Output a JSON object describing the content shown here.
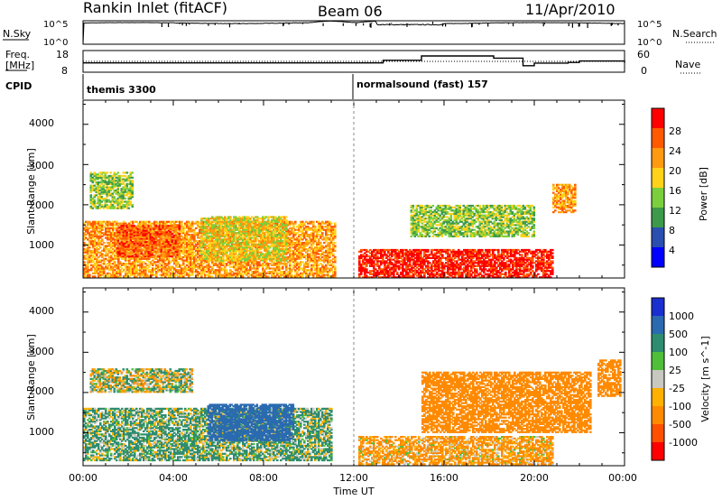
{
  "header": {
    "title": "Rankin Inlet (fitACF)",
    "beam": "Beam 06",
    "date": "11/Apr/2010"
  },
  "top_panels": {
    "nsky_label": "N.Sky",
    "nsky_ticks": [
      "10^5",
      "10^0"
    ],
    "nsearch_label": "N.Search",
    "freq_label": "Freq.",
    "freq_unit": "[MHz]",
    "freq_ticks": [
      "18",
      "8"
    ],
    "nave_label": "Nave",
    "nave_ticks": [
      "60",
      "0"
    ],
    "cpid_label": "CPID",
    "cpid_segments": [
      {
        "name": "themis 3300",
        "start": 0
      },
      {
        "name": "normalsound (fast) 157",
        "start": 12
      }
    ]
  },
  "x_axis": {
    "label": "Time UT",
    "ticks": [
      "00:00",
      "04:00",
      "08:00",
      "12:00",
      "16:00",
      "20:00",
      "00:00"
    ]
  },
  "power_panel": {
    "ylabel": "Slant Range [km]",
    "yticks": [
      "1000",
      "2000",
      "3000",
      "4000"
    ],
    "colorbar_label": "Power [dB]",
    "colorbar_ticks": [
      "28",
      "24",
      "20",
      "16",
      "12",
      "8",
      "4"
    ],
    "colors": [
      "#0000ff",
      "#2a4fb0",
      "#3c9a4a",
      "#7ccf3c",
      "#ffd21a",
      "#ff9a10",
      "#ff5a00",
      "#ff0000"
    ]
  },
  "velocity_panel": {
    "ylabel": "Slant Range [km]",
    "yticks": [
      "1000",
      "2000",
      "3000",
      "4000"
    ],
    "colorbar_label": "Velocity [m s^-1]",
    "colorbar_ticks": [
      "1000",
      "500",
      "100",
      "25",
      "-25",
      "-100",
      "-500",
      "-1000"
    ],
    "colors": [
      "#1a2fd0",
      "#2a6ab0",
      "#2e8c70",
      "#4fbf3a",
      "#c8c8c0",
      "#ffb000",
      "#ff8a00",
      "#ff5000",
      "#ff0000"
    ]
  },
  "chart_data": [
    {
      "type": "line",
      "name_text": "N.Sky / N.Search",
      "x_range_hours": [
        0,
        24
      ],
      "y_scale": "log",
      "ylim": [
        "10^0",
        "10^5"
      ]
    },
    {
      "type": "line",
      "x_range_hours": [
        0,
        24
      ],
      "series": [
        {
          "name": "Freq.",
          "x": [
            0,
            12,
            13.3,
            15,
            18.2,
            19.5,
            20,
            21.5,
            22,
            24
          ],
          "values": [
            12.3,
            12.3,
            13.5,
            15.5,
            14.5,
            11.0,
            12.2,
            12.5,
            13.2,
            12.3
          ]
        },
        {
          "name": "Nave",
          "x": [
            0,
            12,
            24
          ],
          "values": [
            28,
            28,
            28
          ]
        }
      ],
      "ylim": [
        8,
        18
      ]
    },
    {
      "type": "heatmap",
      "quantity": "Power [dB]",
      "x_range_hours": [
        0,
        24
      ],
      "ylim_km": [
        180,
        4600
      ],
      "clim": [
        0,
        32
      ],
      "regions": [
        {
          "t0": 0.0,
          "t1": 11.2,
          "r0": 200,
          "r1": 1600,
          "level": 5
        },
        {
          "t0": 0.3,
          "t1": 2.2,
          "r0": 1900,
          "r1": 2800,
          "level": 3
        },
        {
          "t0": 1.5,
          "t1": 4.3,
          "r0": 700,
          "r1": 1500,
          "level": 6
        },
        {
          "t0": 5.2,
          "t1": 9.0,
          "r0": 600,
          "r1": 1700,
          "level": 4
        },
        {
          "t0": 12.2,
          "t1": 20.8,
          "r0": 180,
          "r1": 900,
          "level": 7
        },
        {
          "t0": 14.5,
          "t1": 20.0,
          "r0": 1200,
          "r1": 2000,
          "level": 3
        },
        {
          "t0": 20.8,
          "t1": 21.8,
          "r0": 1800,
          "r1": 2500,
          "level": 5
        }
      ]
    },
    {
      "type": "heatmap",
      "quantity": "Velocity [m s^-1]",
      "x_range_hours": [
        0,
        24
      ],
      "ylim_km": [
        180,
        4600
      ],
      "clim": [
        -1000,
        1000
      ],
      "regions": [
        {
          "t0": 0.0,
          "t1": 11.0,
          "r0": 300,
          "r1": 1600,
          "value": 100
        },
        {
          "t0": 0.3,
          "t1": 4.8,
          "r0": 2000,
          "r1": 2600,
          "value": 0
        },
        {
          "t0": 5.5,
          "t1": 9.3,
          "r0": 800,
          "r1": 1700,
          "value": 500
        },
        {
          "t0": 12.2,
          "t1": 20.8,
          "r0": 200,
          "r1": 900,
          "value": -150
        },
        {
          "t0": 15.0,
          "t1": 22.5,
          "r0": 1000,
          "r1": 2500,
          "value": -300
        },
        {
          "t0": 22.8,
          "t1": 23.8,
          "r0": 1900,
          "r1": 2800,
          "value": -300
        }
      ]
    }
  ]
}
